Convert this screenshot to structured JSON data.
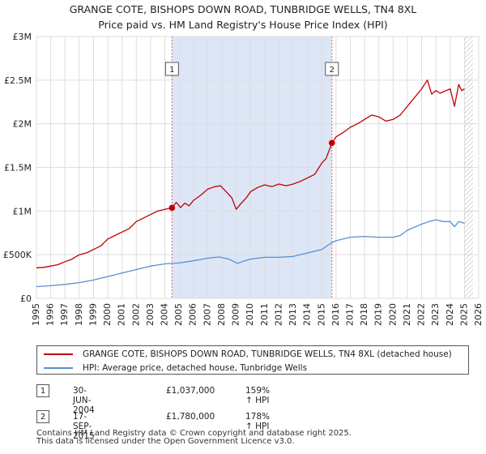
{
  "title_line1": "GRANGE COTE, BISHOPS DOWN ROAD, TUNBRIDGE WELLS, TN4 8XL",
  "title_line2": "Price paid vs. HM Land Registry's House Price Index (HPI)",
  "colors": {
    "property": "#c00000",
    "hpi": "#5a8fd0",
    "shade": "#dde6f6",
    "grid": "#dddddd",
    "marker_line": "#e06060"
  },
  "chart_data": {
    "type": "line",
    "title": "GRANGE COTE, BISHOPS DOWN ROAD, TUNBRIDGE WELLS, TN4 8XL — Price paid vs. HM Land Registry's House Price Index (HPI)",
    "xlabel": "",
    "ylabel": "",
    "xlim": [
      1995,
      2026
    ],
    "ylim": [
      0,
      3000000
    ],
    "grid": true,
    "x_ticks": [
      "1995",
      "1996",
      "1997",
      "1998",
      "1999",
      "2000",
      "2001",
      "2002",
      "2003",
      "2004",
      "2005",
      "2006",
      "2007",
      "2008",
      "2009",
      "2010",
      "2011",
      "2012",
      "2013",
      "2014",
      "2015",
      "2016",
      "2017",
      "2018",
      "2019",
      "2020",
      "2021",
      "2022",
      "2023",
      "2024",
      "2025",
      "2026"
    ],
    "y_ticks": [
      {
        "value": 0,
        "label": "£0"
      },
      {
        "value": 500000,
        "label": "£500K"
      },
      {
        "value": 1000000,
        "label": "£1M"
      },
      {
        "value": 1500000,
        "label": "£1.5M"
      },
      {
        "value": 2000000,
        "label": "£2M"
      },
      {
        "value": 2500000,
        "label": "£2.5M"
      },
      {
        "value": 3000000,
        "label": "£3M"
      }
    ],
    "shaded_range": [
      2004.5,
      2015.71
    ],
    "future_hatch_from": 2025.0,
    "sale_markers": [
      {
        "label": "1",
        "x": 2004.5,
        "y": 1037000
      },
      {
        "label": "2",
        "x": 2015.71,
        "y": 1780000
      }
    ],
    "series": [
      {
        "name": "GRANGE COTE, BISHOPS DOWN ROAD, TUNBRIDGE WELLS, TN4 8XL (detached house)",
        "color": "#c00000",
        "x": [
          1995.0,
          1995.5,
          1996.0,
          1996.5,
          1997.0,
          1997.5,
          1998.0,
          1998.5,
          1999.0,
          1999.5,
          2000.0,
          2000.5,
          2001.0,
          2001.5,
          2002.0,
          2002.5,
          2003.0,
          2003.5,
          2004.0,
          2004.5,
          2004.8,
          2005.1,
          2005.4,
          2005.7,
          2006.0,
          2006.5,
          2007.0,
          2007.5,
          2007.9,
          2008.3,
          2008.7,
          2009.0,
          2009.3,
          2009.7,
          2010.0,
          2010.5,
          2011.0,
          2011.5,
          2012.0,
          2012.5,
          2013.0,
          2013.5,
          2014.0,
          2014.5,
          2015.0,
          2015.3,
          2015.71,
          2016.0,
          2016.5,
          2017.0,
          2017.5,
          2018.0,
          2018.5,
          2019.0,
          2019.5,
          2020.0,
          2020.5,
          2021.0,
          2021.5,
          2022.0,
          2022.4,
          2022.7,
          2023.0,
          2023.3,
          2023.7,
          2024.0,
          2024.3,
          2024.6,
          2024.8,
          2025.0
        ],
        "values": [
          350000,
          355000,
          370000,
          385000,
          420000,
          450000,
          500000,
          520000,
          560000,
          600000,
          680000,
          720000,
          760000,
          800000,
          880000,
          920000,
          960000,
          1000000,
          1020000,
          1037000,
          1100000,
          1040000,
          1090000,
          1060000,
          1120000,
          1180000,
          1250000,
          1280000,
          1290000,
          1220000,
          1150000,
          1020000,
          1080000,
          1150000,
          1220000,
          1270000,
          1300000,
          1280000,
          1310000,
          1290000,
          1310000,
          1340000,
          1380000,
          1420000,
          1550000,
          1600000,
          1780000,
          1850000,
          1900000,
          1960000,
          2000000,
          2050000,
          2100000,
          2080000,
          2030000,
          2050000,
          2100000,
          2200000,
          2300000,
          2400000,
          2500000,
          2340000,
          2380000,
          2350000,
          2380000,
          2400000,
          2200000,
          2450000,
          2380000,
          2400000
        ]
      },
      {
        "name": "HPI: Average price, detached house, Tunbridge Wells",
        "color": "#5a8fd0",
        "x": [
          1995.0,
          1996.0,
          1997.0,
          1998.0,
          1999.0,
          2000.0,
          2001.0,
          2002.0,
          2003.0,
          2004.0,
          2004.5,
          2005.0,
          2006.0,
          2007.0,
          2007.8,
          2008.5,
          2009.1,
          2009.6,
          2010.0,
          2011.0,
          2012.0,
          2013.0,
          2014.0,
          2015.0,
          2015.71,
          2016.0,
          2017.0,
          2018.0,
          2019.0,
          2020.0,
          2020.5,
          2021.0,
          2022.0,
          2022.5,
          2023.0,
          2023.5,
          2024.0,
          2024.3,
          2024.6,
          2024.8,
          2025.0
        ],
        "values": [
          135000,
          145000,
          160000,
          180000,
          210000,
          250000,
          290000,
          330000,
          370000,
          395000,
          400000,
          405000,
          430000,
          460000,
          475000,
          450000,
          400000,
          430000,
          450000,
          470000,
          470000,
          480000,
          520000,
          560000,
          640000,
          660000,
          700000,
          710000,
          700000,
          700000,
          720000,
          780000,
          850000,
          880000,
          900000,
          880000,
          880000,
          820000,
          880000,
          870000,
          860000
        ]
      }
    ]
  },
  "legend": {
    "property_label": "GRANGE COTE, BISHOPS DOWN ROAD, TUNBRIDGE WELLS, TN4 8XL (detached house)",
    "hpi_label": "HPI: Average price, detached house, Tunbridge Wells"
  },
  "sales": [
    {
      "num": "1",
      "date": "30-JUN-2004",
      "price": "£1,037,000",
      "hpi": "159% ↑ HPI"
    },
    {
      "num": "2",
      "date": "17-SEP-2015",
      "price": "£1,780,000",
      "hpi": "178% ↑ HPI"
    }
  ],
  "footer": {
    "line1": "Contains HM Land Registry data © Crown copyright and database right 2025.",
    "line2": "This data is licensed under the Open Government Licence v3.0."
  }
}
